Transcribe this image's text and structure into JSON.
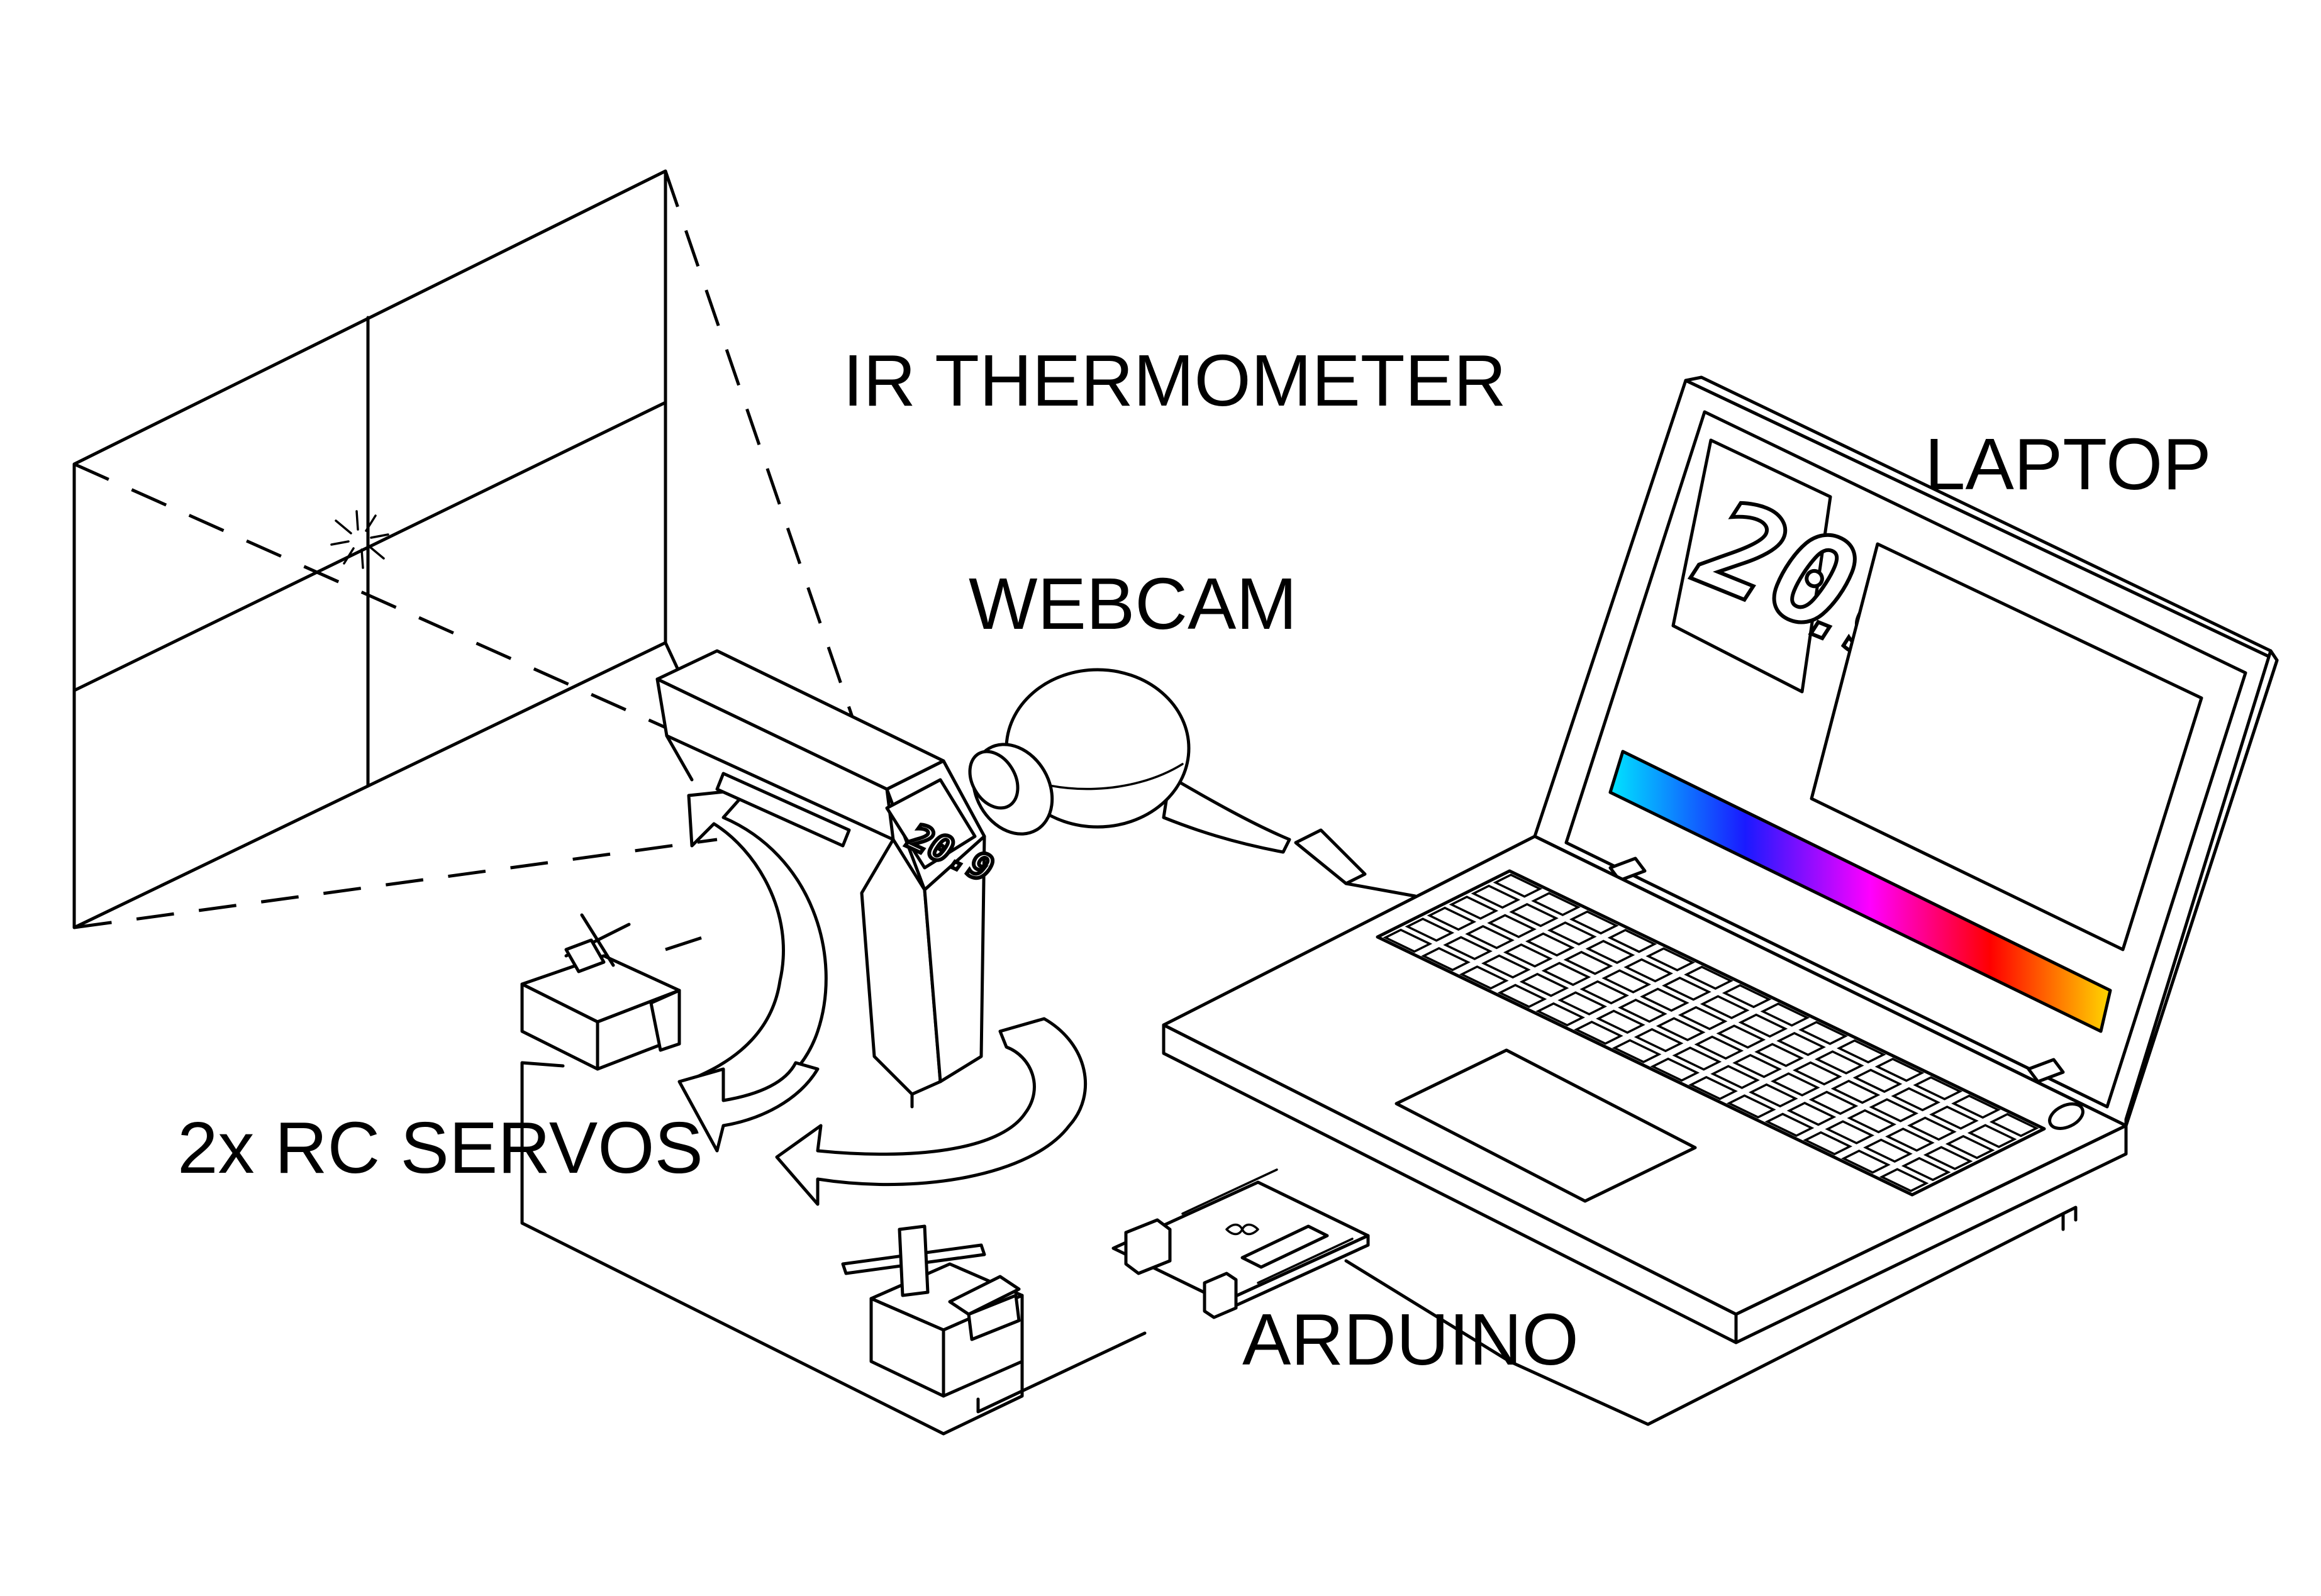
{
  "labels": {
    "ir_thermometer": "IR THERMOMETER",
    "webcam": "WEBCAM",
    "laptop": "LAPTOP",
    "rc_servos": "2x RC SERVOS",
    "arduino": "ARDUINO"
  },
  "readout": {
    "screen_value_main": "20",
    "screen_value_decimal": ".9",
    "thermometer_value": "20.9"
  },
  "colors": {
    "line": "#000000",
    "background": "#ffffff",
    "gradient": [
      "#00e5ff",
      "#1a1aff",
      "#ff00ff",
      "#ff0000",
      "#ffd700"
    ]
  }
}
